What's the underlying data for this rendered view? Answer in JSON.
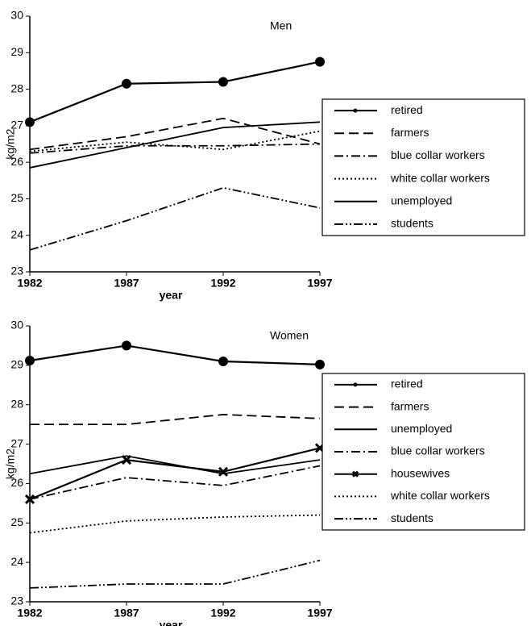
{
  "chart_data": [
    {
      "type": "line",
      "title": "Men",
      "xlabel": "year",
      "ylabel": "kg/m2",
      "x": [
        1982,
        1987,
        1992,
        1997
      ],
      "xlim": [
        1982,
        1997
      ],
      "xticks": [
        1982,
        1987,
        1992,
        1997
      ],
      "ylim": [
        23,
        30
      ],
      "yticks": [
        23,
        24,
        25,
        26,
        27,
        28,
        29,
        30
      ],
      "legend": "right",
      "series": [
        {
          "name": "retired",
          "color": "#000000",
          "linestyle": "solid",
          "marker": "circle",
          "values": [
            27.1,
            28.15,
            28.2,
            28.75
          ]
        },
        {
          "name": "farmers",
          "color": "#000000",
          "linestyle": "dashed",
          "marker": "none",
          "values": [
            26.35,
            26.7,
            27.2,
            26.5
          ]
        },
        {
          "name": "blue collar workers",
          "color": "#000000",
          "linestyle": "dashdot",
          "marker": "none",
          "values": [
            26.25,
            26.45,
            26.45,
            26.5
          ]
        },
        {
          "name": "white collar workers",
          "color": "#000000",
          "linestyle": "dotted",
          "marker": "none",
          "values": [
            26.3,
            26.55,
            26.35,
            26.85
          ]
        },
        {
          "name": "unemployed",
          "color": "#000000",
          "linestyle": "solid",
          "marker": "none",
          "values": [
            25.85,
            26.4,
            26.95,
            27.1
          ]
        },
        {
          "name": "students",
          "color": "#000000",
          "linestyle": "dashdotdot",
          "marker": "none",
          "values": [
            23.6,
            24.4,
            25.3,
            24.75
          ]
        }
      ]
    },
    {
      "type": "line",
      "title": "Women",
      "xlabel": "year",
      "ylabel": "kg/m2",
      "x": [
        1982,
        1987,
        1992,
        1997
      ],
      "xlim": [
        1982,
        1997
      ],
      "xticks": [
        1982,
        1987,
        1992,
        1997
      ],
      "ylim": [
        23,
        30
      ],
      "yticks": [
        23,
        24,
        25,
        26,
        27,
        28,
        29,
        30
      ],
      "legend": "right",
      "series": [
        {
          "name": "retired",
          "color": "#000000",
          "linestyle": "solid",
          "marker": "circle",
          "values": [
            29.12,
            29.5,
            29.1,
            29.02
          ]
        },
        {
          "name": "farmers",
          "color": "#000000",
          "linestyle": "dashed",
          "marker": "none",
          "values": [
            27.5,
            27.5,
            27.75,
            27.65
          ]
        },
        {
          "name": "unemployed",
          "color": "#000000",
          "linestyle": "solid",
          "marker": "none",
          "values": [
            26.25,
            26.7,
            26.25,
            26.6
          ]
        },
        {
          "name": "blue collar workers",
          "color": "#000000",
          "linestyle": "dashdot",
          "marker": "none",
          "values": [
            25.6,
            26.15,
            25.95,
            26.45
          ]
        },
        {
          "name": "housewives",
          "color": "#000000",
          "linestyle": "solid",
          "marker": "x",
          "values": [
            25.6,
            26.6,
            26.3,
            26.9
          ]
        },
        {
          "name": "white collar workers",
          "color": "#000000",
          "linestyle": "dotted",
          "marker": "none",
          "values": [
            24.75,
            25.05,
            25.15,
            25.2
          ]
        },
        {
          "name": "students",
          "color": "#000000",
          "linestyle": "dashdotdot",
          "marker": "none",
          "values": [
            23.35,
            23.45,
            23.45,
            24.05
          ]
        }
      ]
    }
  ]
}
